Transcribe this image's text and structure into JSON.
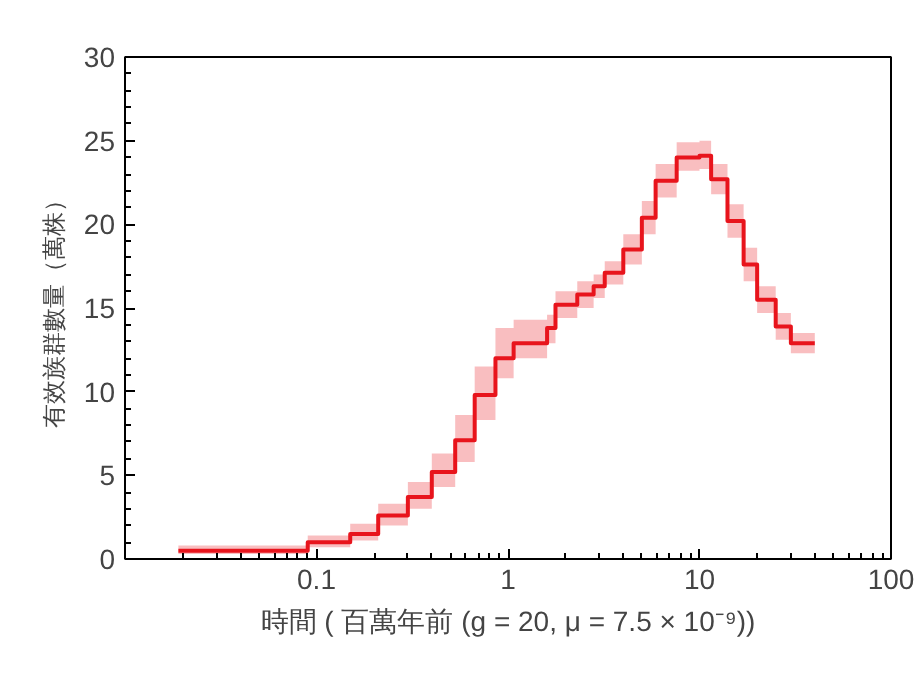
{
  "chart_data": {
    "type": "step",
    "xlabel": "時間 ( 百萬年前 (g = 20, μ = 7.5 × 10⁻⁹))",
    "ylabel": "有效族群數量（萬株）",
    "log": "x",
    "xlim": [
      0.01,
      100
    ],
    "xticks": [
      0.1,
      1,
      10,
      100
    ],
    "ylim": [
      0,
      30
    ],
    "yticks": [
      0,
      5,
      10,
      15,
      20,
      25,
      30
    ],
    "grid": false,
    "x": [
      0.019,
      0.09,
      0.15,
      0.21,
      0.3,
      0.4,
      0.53,
      0.67,
      0.86,
      1.07,
      1.6,
      1.77,
      2.3,
      2.8,
      3.2,
      4.0,
      5.0,
      5.9,
      7.6,
      10,
      11.5,
      14,
      17,
      20,
      25,
      30,
      40
    ],
    "series": [
      {
        "color": "#e8141c",
        "values": [
          0.5,
          1.0,
          1.5,
          2.6,
          3.7,
          5.2,
          7.1,
          9.8,
          12.0,
          12.9,
          13.8,
          15.2,
          15.8,
          16.3,
          17.1,
          18.5,
          20.4,
          22.6,
          24.0,
          24.1,
          22.7,
          20.2,
          17.6,
          15.5,
          13.9,
          12.9,
          12.9
        ],
        "lower": [
          0.3,
          0.7,
          1.1,
          2.0,
          3.0,
          4.3,
          5.8,
          8.3,
          10.8,
          12.0,
          12.9,
          14.4,
          15.0,
          15.6,
          16.4,
          17.6,
          19.4,
          21.6,
          23.2,
          23.3,
          21.8,
          19.2,
          16.6,
          14.7,
          13.1,
          12.3,
          12.5
        ],
        "upper": [
          0.8,
          1.4,
          2.1,
          3.3,
          4.6,
          6.3,
          8.6,
          11.5,
          13.8,
          14.3,
          14.6,
          16.0,
          16.6,
          17.0,
          17.8,
          19.4,
          21.4,
          23.6,
          24.9,
          25.0,
          23.6,
          21.2,
          18.6,
          16.3,
          14.7,
          13.5,
          13.4
        ]
      }
    ]
  }
}
